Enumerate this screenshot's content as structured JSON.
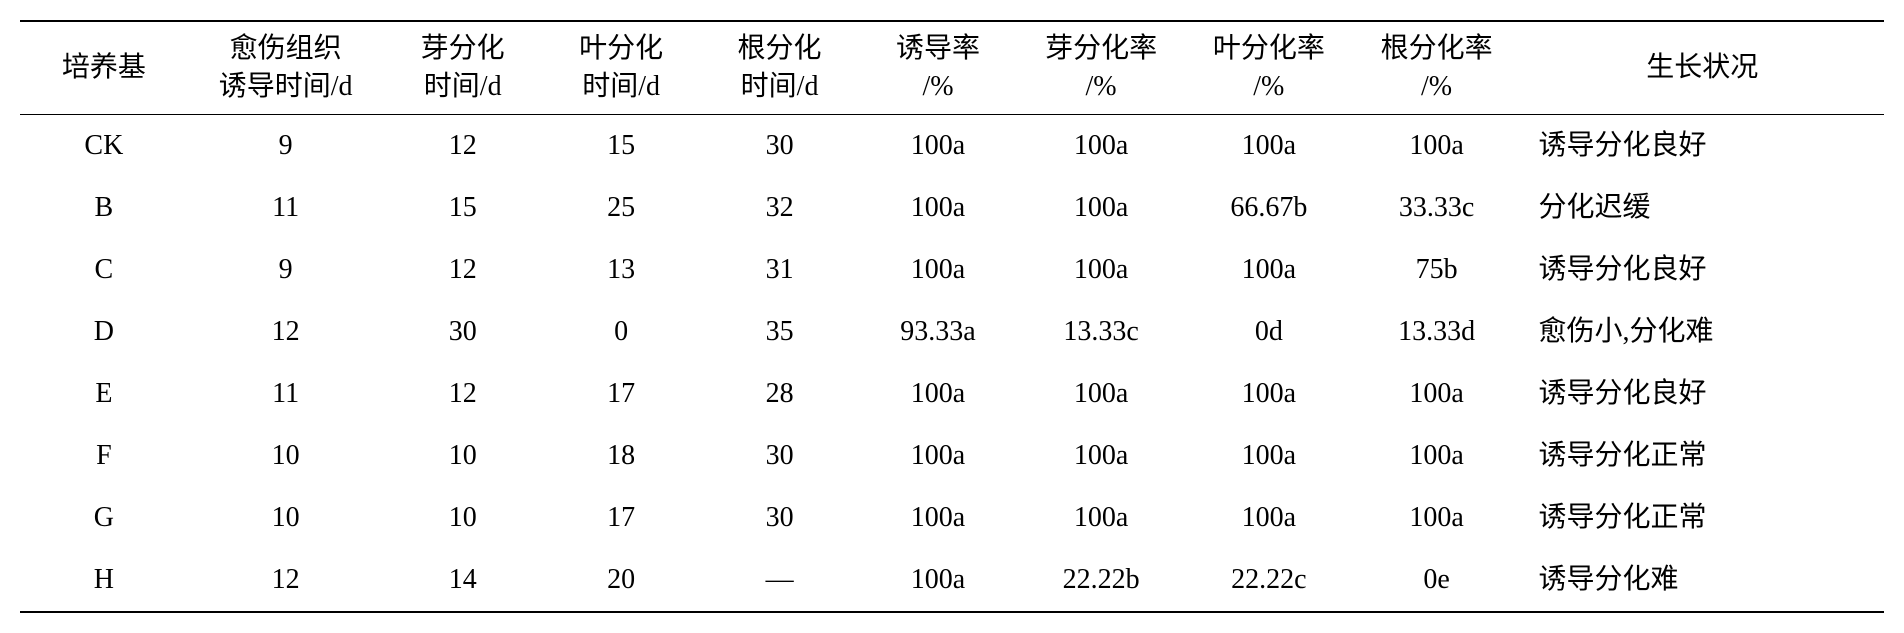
{
  "table": {
    "type": "table",
    "background_color": "#ffffff",
    "text_color": "#000000",
    "border_color": "#000000",
    "font_family": "SimSun, Times New Roman, serif",
    "header_fontsize": 28,
    "cell_fontsize": 28,
    "top_border_width": 2,
    "header_bottom_border_width": 1.5,
    "bottom_border_width": 2,
    "columns": [
      {
        "line1": "培养基",
        "line2": "",
        "width_pct": 9,
        "align": "center"
      },
      {
        "line1": "愈伤组织",
        "line2": "诱导时间/d",
        "width_pct": 10.5,
        "align": "center"
      },
      {
        "line1": "芽分化",
        "line2": "时间/d",
        "width_pct": 8.5,
        "align": "center"
      },
      {
        "line1": "叶分化",
        "line2": "时间/d",
        "width_pct": 8.5,
        "align": "center"
      },
      {
        "line1": "根分化",
        "line2": "时间/d",
        "width_pct": 8.5,
        "align": "center"
      },
      {
        "line1": "诱导率",
        "line2": "/%",
        "width_pct": 8.5,
        "align": "center"
      },
      {
        "line1": "芽分化率",
        "line2": "/%",
        "width_pct": 9,
        "align": "center"
      },
      {
        "line1": "叶分化率",
        "line2": "/%",
        "width_pct": 9,
        "align": "center"
      },
      {
        "line1": "根分化率",
        "line2": "/%",
        "width_pct": 9,
        "align": "center"
      },
      {
        "line1": "生长状况",
        "line2": "",
        "width_pct": 19.5,
        "align": "left"
      }
    ],
    "rows": [
      [
        "CK",
        "9",
        "12",
        "15",
        "30",
        "100a",
        "100a",
        "100a",
        "100a",
        "诱导分化良好"
      ],
      [
        "B",
        "11",
        "15",
        "25",
        "32",
        "100a",
        "100a",
        "66.67b",
        "33.33c",
        "分化迟缓"
      ],
      [
        "C",
        "9",
        "12",
        "13",
        "31",
        "100a",
        "100a",
        "100a",
        "75b",
        "诱导分化良好"
      ],
      [
        "D",
        "12",
        "30",
        "0",
        "35",
        "93.33a",
        "13.33c",
        "0d",
        "13.33d",
        "愈伤小,分化难"
      ],
      [
        "E",
        "11",
        "12",
        "17",
        "28",
        "100a",
        "100a",
        "100a",
        "100a",
        "诱导分化良好"
      ],
      [
        "F",
        "10",
        "10",
        "18",
        "30",
        "100a",
        "100a",
        "100a",
        "100a",
        "诱导分化正常"
      ],
      [
        "G",
        "10",
        "10",
        "17",
        "30",
        "100a",
        "100a",
        "100a",
        "100a",
        "诱导分化正常"
      ],
      [
        "H",
        "12",
        "14",
        "20",
        "—",
        "100a",
        "22.22b",
        "22.22c",
        "0e",
        "诱导分化难"
      ]
    ]
  }
}
